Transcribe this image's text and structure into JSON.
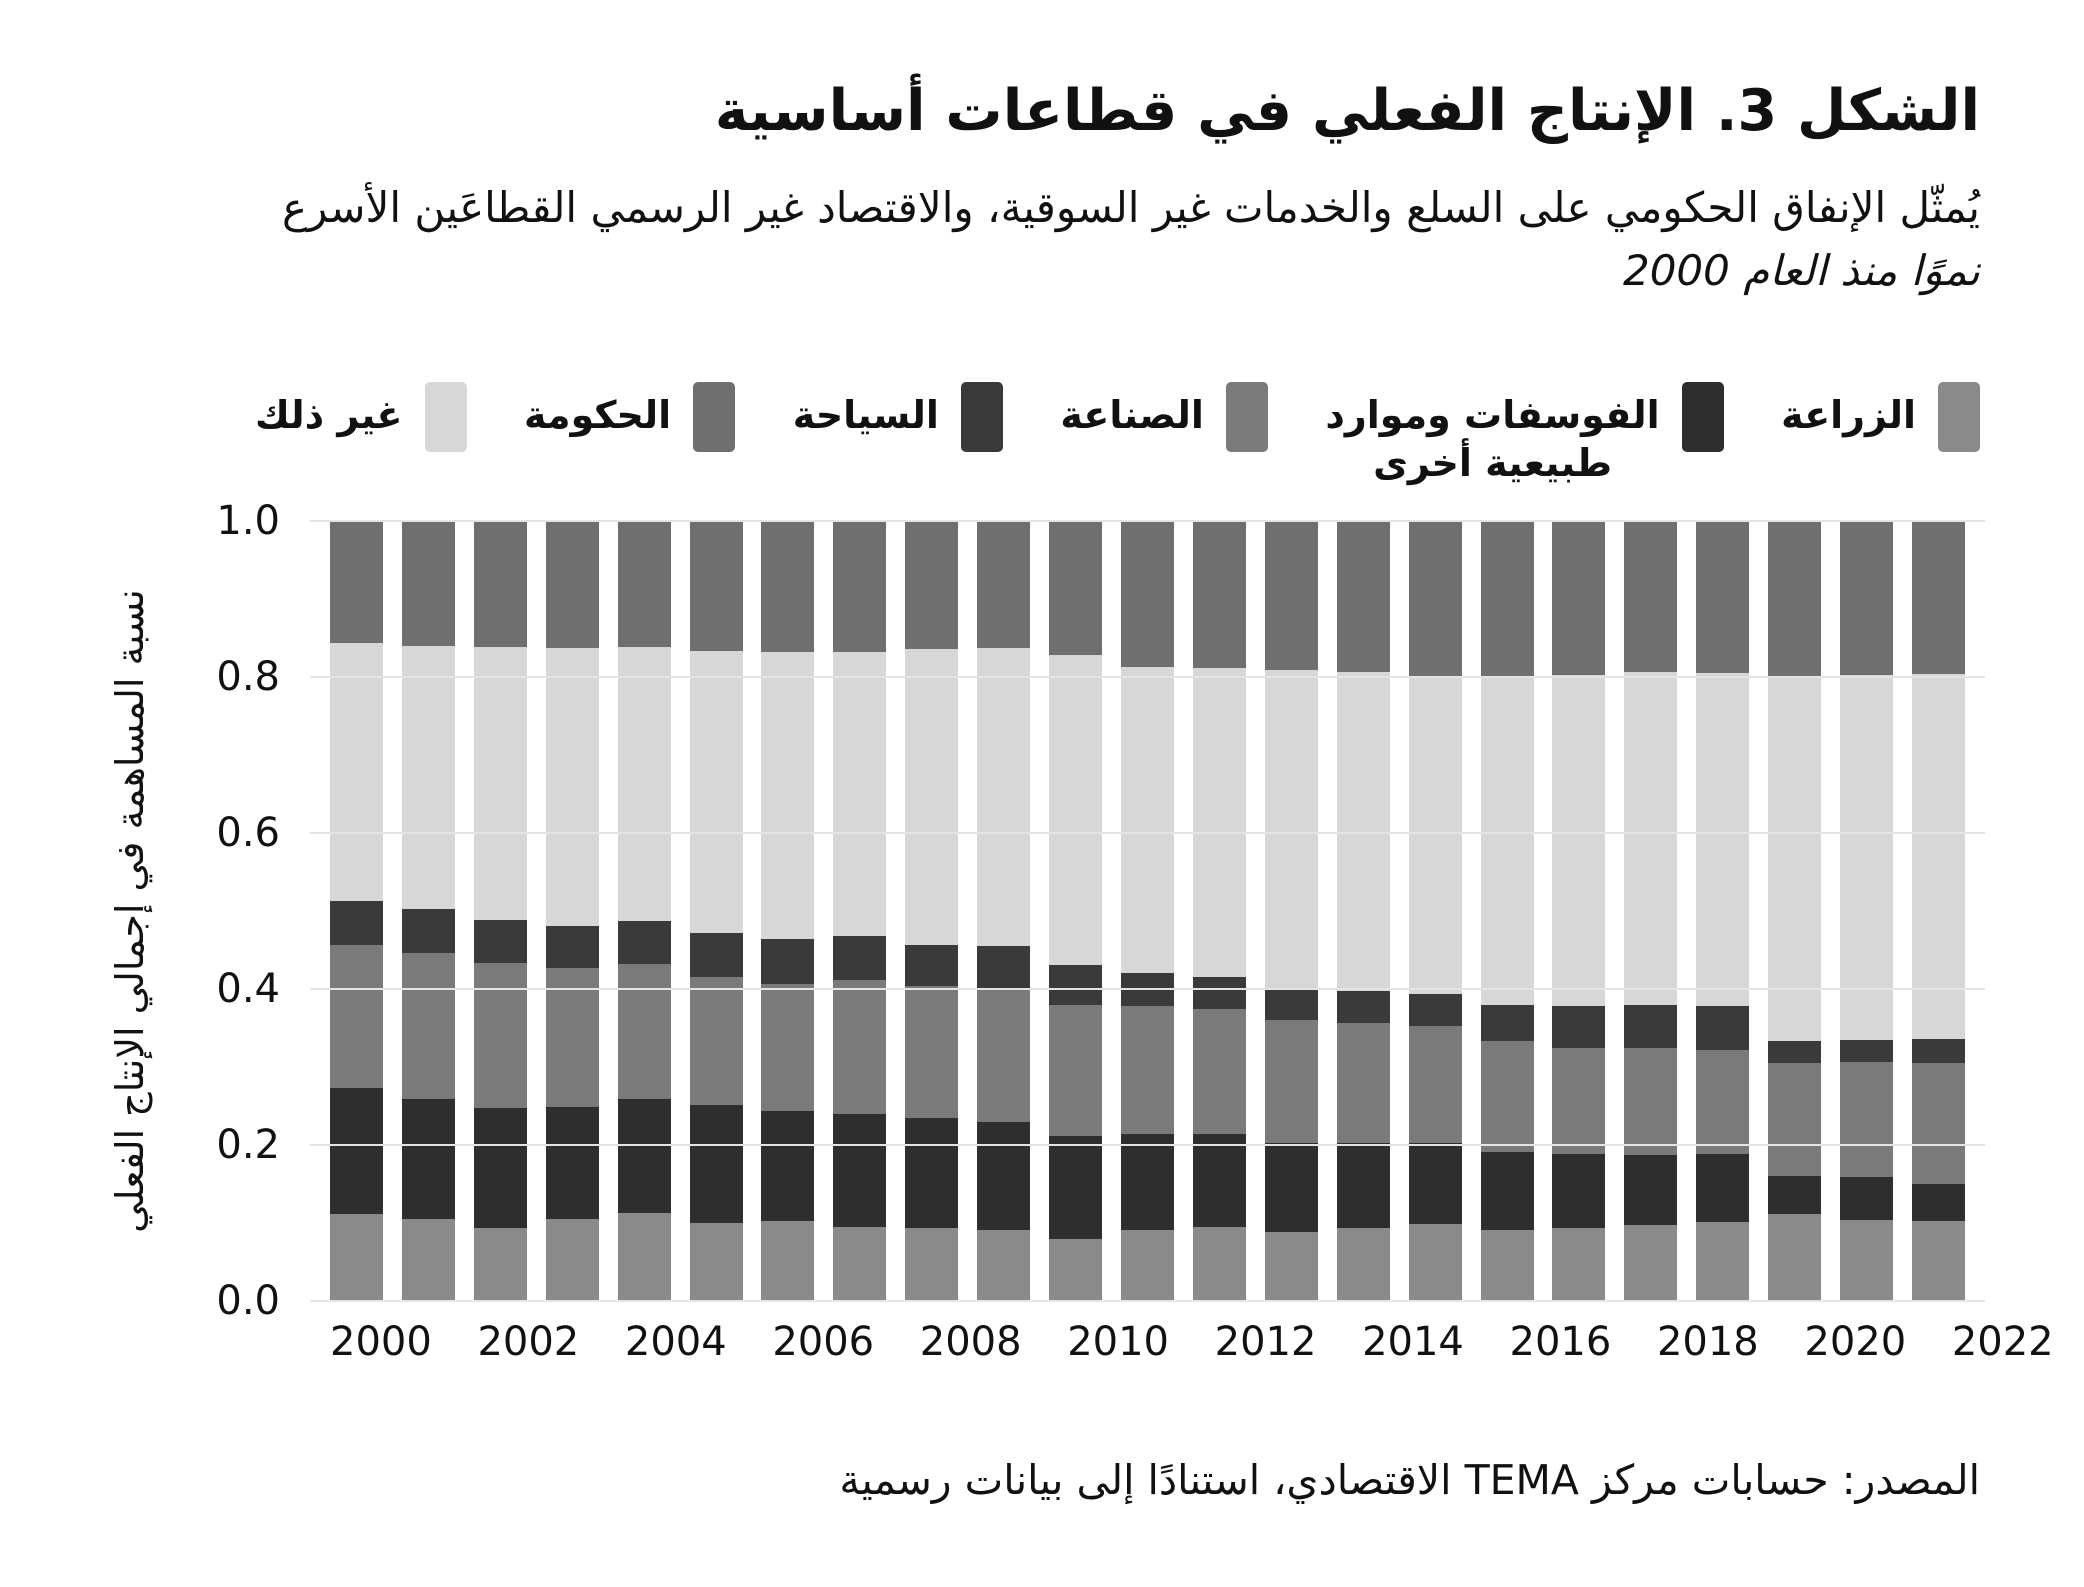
{
  "figure": {
    "title": "الشكل 3. الإنتاج الفعلي في قطاعات أساسية",
    "subtitle_line1": "يُمثّل الإنفاق الحكومي على السلع والخدمات غير السوقية، والاقتصاد غير الرسمي القطاعَين الأسرع",
    "subtitle_line2": "نموًا منذ العام 2000",
    "ylabel": "نسبة المساهمة في إجمالي الإنتاج الفعلي",
    "source": "المصدر: حسابات مركز TEMA الاقتصادي، استنادًا إلى بيانات رسمية"
  },
  "legend": [
    {
      "id": "agriculture",
      "label": "الزراعة",
      "color": "#8a8a8a"
    },
    {
      "id": "phosphates",
      "label": "الفوسفات وموارد",
      "label_line2": "طبيعية أخرى",
      "color": "#2e2e2e"
    },
    {
      "id": "industry",
      "label": "الصناعة",
      "color": "#7a7a7a"
    },
    {
      "id": "tourism",
      "label": "السياحة",
      "color": "#3a3a3a"
    },
    {
      "id": "government",
      "label": "الحكومة",
      "color": "#6f6f6f"
    },
    {
      "id": "other",
      "label": "غير ذلك",
      "color": "#d7d7d7"
    }
  ],
  "chart_data": {
    "type": "bar",
    "stacked": true,
    "normalized": true,
    "title": "الشكل 3. الإنتاج الفعلي في قطاعات أساسية",
    "xlabel": "",
    "ylabel": "نسبة المساهمة في إجمالي الإنتاج الفعلي",
    "ylim": [
      0.0,
      1.0
    ],
    "yticks": [
      "0.0",
      "0.2",
      "0.4",
      "0.6",
      "0.8",
      "1.0"
    ],
    "grid": "horizontal",
    "legend_position": "top",
    "categories": [
      2000,
      2001,
      2002,
      2003,
      2004,
      2005,
      2006,
      2007,
      2008,
      2009,
      2010,
      2011,
      2012,
      2013,
      2014,
      2015,
      2016,
      2017,
      2018,
      2019,
      2020,
      2021,
      2022
    ],
    "xticks": [
      2000,
      2002,
      2004,
      2006,
      2008,
      2010,
      2012,
      2014,
      2016,
      2018,
      2020,
      2022
    ],
    "stack_order_bottom_to_top": [
      "agriculture",
      "phosphates",
      "industry",
      "tourism",
      "other",
      "government"
    ],
    "series": [
      {
        "id": "agriculture",
        "name": "الزراعة",
        "color": "#8a8a8a",
        "values": [
          0.112,
          0.105,
          0.094,
          0.105,
          0.113,
          0.1,
          0.102,
          0.095,
          0.093,
          0.091,
          0.08,
          0.091,
          0.095,
          0.089,
          0.093,
          0.099,
          0.091,
          0.094,
          0.098,
          0.101,
          0.111,
          0.104,
          0.103
        ]
      },
      {
        "id": "phosphates",
        "name": "الفوسفات وموارد طبيعية أخرى",
        "color": "#2e2e2e",
        "values": [
          0.161,
          0.154,
          0.154,
          0.144,
          0.146,
          0.151,
          0.141,
          0.145,
          0.142,
          0.138,
          0.132,
          0.123,
          0.119,
          0.113,
          0.11,
          0.104,
          0.1,
          0.095,
          0.089,
          0.088,
          0.049,
          0.055,
          0.047
        ]
      },
      {
        "id": "industry",
        "name": "الصناعة",
        "color": "#7a7a7a",
        "values": [
          0.183,
          0.187,
          0.186,
          0.178,
          0.173,
          0.164,
          0.164,
          0.171,
          0.169,
          0.17,
          0.167,
          0.164,
          0.161,
          0.158,
          0.154,
          0.15,
          0.142,
          0.136,
          0.137,
          0.133,
          0.145,
          0.147,
          0.155
        ]
      },
      {
        "id": "tourism",
        "name": "السياحة",
        "color": "#3a3a3a",
        "values": [
          0.057,
          0.056,
          0.054,
          0.054,
          0.055,
          0.057,
          0.057,
          0.057,
          0.053,
          0.056,
          0.052,
          0.043,
          0.04,
          0.04,
          0.041,
          0.04,
          0.046,
          0.053,
          0.055,
          0.056,
          0.028,
          0.029,
          0.031
        ]
      },
      {
        "id": "other",
        "name": "غير ذلك",
        "color": "#d7d7d7",
        "values": [
          0.33,
          0.338,
          0.35,
          0.356,
          0.352,
          0.361,
          0.368,
          0.364,
          0.379,
          0.382,
          0.397,
          0.392,
          0.396,
          0.409,
          0.409,
          0.407,
          0.42,
          0.424,
          0.428,
          0.427,
          0.466,
          0.467,
          0.468
        ]
      },
      {
        "id": "government",
        "name": "الحكومة",
        "color": "#6f6f6f",
        "values": [
          0.157,
          0.16,
          0.162,
          0.163,
          0.161,
          0.167,
          0.168,
          0.168,
          0.164,
          0.163,
          0.172,
          0.187,
          0.189,
          0.191,
          0.193,
          0.2,
          0.201,
          0.198,
          0.193,
          0.195,
          0.201,
          0.198,
          0.196
        ]
      }
    ]
  }
}
